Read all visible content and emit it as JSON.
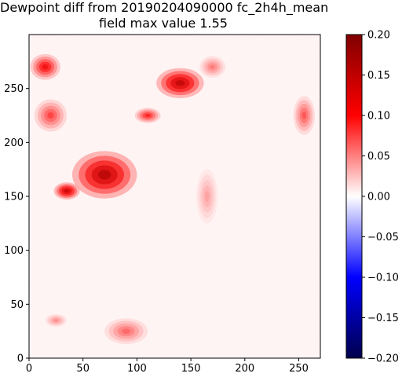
{
  "chart_data": {
    "type": "heatmap",
    "title_lines": [
      "Dewpoint diff from 20190204090000 fc_2h4h_mean",
      "field max value 1.55"
    ],
    "xlabel": "",
    "ylabel": "",
    "xlim": [
      0,
      270
    ],
    "ylim": [
      0,
      300
    ],
    "x_ticks": [
      0,
      50,
      100,
      150,
      200,
      250
    ],
    "y_ticks": [
      0,
      50,
      100,
      150,
      200,
      250
    ],
    "colorbar": {
      "colormap": "seismic",
      "range": [
        -0.2,
        0.2
      ],
      "ticks": [
        "0.20",
        "0.15",
        "0.10",
        "0.05",
        "0.00",
        "-0.05",
        "-0.10",
        "-0.15",
        "-0.20"
      ],
      "colors": {
        "low": "#00004c",
        "mid_low": "#0000ff",
        "center": "#ffffff",
        "mid_high": "#ff0000",
        "high": "#800000"
      }
    },
    "field_max_value": 1.55,
    "hotspots": [
      {
        "x": 70,
        "y": 170,
        "rx": 30,
        "ry": 22,
        "value": 0.2
      },
      {
        "x": 35,
        "y": 155,
        "rx": 12,
        "ry": 8,
        "value": 0.18
      },
      {
        "x": 140,
        "y": 255,
        "rx": 22,
        "ry": 14,
        "value": 0.19
      },
      {
        "x": 110,
        "y": 225,
        "rx": 12,
        "ry": 7,
        "value": 0.12
      },
      {
        "x": 15,
        "y": 270,
        "rx": 14,
        "ry": 12,
        "value": 0.14
      },
      {
        "x": 20,
        "y": 225,
        "rx": 15,
        "ry": 15,
        "value": 0.1
      },
      {
        "x": 255,
        "y": 225,
        "rx": 10,
        "ry": 18,
        "value": 0.09
      },
      {
        "x": 90,
        "y": 25,
        "rx": 20,
        "ry": 12,
        "value": 0.08
      },
      {
        "x": 25,
        "y": 35,
        "rx": 10,
        "ry": 6,
        "value": 0.06
      },
      {
        "x": 165,
        "y": 150,
        "rx": 10,
        "ry": 25,
        "value": 0.05
      },
      {
        "x": 170,
        "y": 270,
        "rx": 12,
        "ry": 10,
        "value": 0.07
      }
    ]
  }
}
